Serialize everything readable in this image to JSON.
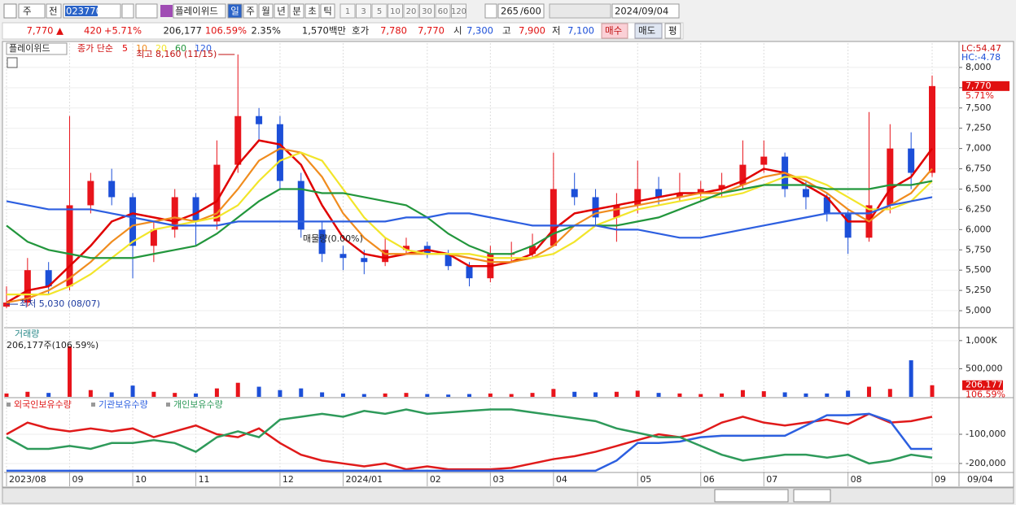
{
  "toolbar": {
    "market": "주",
    "mode": "전",
    "code": "023770",
    "name": "플레이위드",
    "periods": [
      "일",
      "주",
      "월",
      "년",
      "분",
      "초",
      "틱"
    ],
    "intervals": [
      1,
      3,
      5,
      10,
      20,
      30,
      60,
      120
    ],
    "count": 265,
    "max": "/600",
    "date": "2024/09/04"
  },
  "quote": {
    "price": "7,770 ▲",
    "change": "420",
    "change_pct": "+5.71%",
    "volume": "206,177",
    "volume_ratio": "106.59%",
    "turnover": "2.35%",
    "amount": "1,570백만",
    "bid_label": "호가",
    "ask": "7,780",
    "bid": "7,770",
    "open_label": "시",
    "open": "7,300",
    "high_label": "고",
    "high": "7,900",
    "low_label": "저",
    "low": "7,100",
    "buy": "매수",
    "sell": "매도",
    "avg": "평"
  },
  "chart_data": [
    {
      "type": "candlestick",
      "title": "플레이위드",
      "up_color": "#e8141b",
      "down_color": "#1c4fd8",
      "open": [
        5050,
        5100,
        5500,
        5300,
        6300,
        6600,
        6400,
        5800,
        6000,
        6400,
        6100,
        6800,
        7400,
        7300,
        6600,
        6000,
        5700,
        5650,
        5600,
        5750,
        5800,
        5700,
        5550,
        5400,
        5700,
        5700,
        5800,
        6500,
        6400,
        6150,
        6300,
        6500,
        6400,
        6450,
        6500,
        6550,
        6800,
        6900,
        6500,
        6400,
        6200,
        5900,
        6300,
        7000,
        6700
      ],
      "high": [
        5300,
        5650,
        5600,
        7400,
        6700,
        6750,
        6450,
        6100,
        6500,
        6450,
        7100,
        8160,
        7500,
        7400,
        6700,
        6100,
        5800,
        5750,
        5900,
        5900,
        5850,
        5750,
        5600,
        5800,
        5850,
        5950,
        6950,
        6700,
        6500,
        6450,
        6850,
        6650,
        6700,
        6600,
        6700,
        7100,
        7100,
        6950,
        6600,
        6450,
        6250,
        7450,
        7300,
        7200,
        7900
      ],
      "low": [
        5030,
        5050,
        5200,
        5250,
        6200,
        6300,
        5400,
        5600,
        5900,
        5800,
        6000,
        6700,
        7100,
        6500,
        5900,
        5600,
        5500,
        5450,
        5550,
        5700,
        5650,
        5500,
        5300,
        5350,
        5600,
        5650,
        5800,
        6300,
        6050,
        5850,
        6200,
        6300,
        6350,
        6350,
        6400,
        6500,
        6700,
        6400,
        6250,
        6100,
        5700,
        5850,
        6200,
        6500,
        6650
      ],
      "close": [
        5100,
        5500,
        5300,
        6300,
        6600,
        6400,
        5800,
        6000,
        6400,
        6100,
        6800,
        7400,
        7300,
        6600,
        6000,
        5700,
        5650,
        5600,
        5750,
        5800,
        5700,
        5550,
        5400,
        5700,
        5700,
        5800,
        6500,
        6400,
        6150,
        6300,
        6500,
        6400,
        6450,
        6500,
        6550,
        6800,
        6900,
        6500,
        6400,
        6200,
        5900,
        6300,
        7000,
        6700,
        7770
      ],
      "ylim": [
        4800,
        8300
      ],
      "yticks": [
        {
          "value": 5000,
          "label": "5,000"
        },
        {
          "value": 5250,
          "label": "5,250"
        },
        {
          "value": 5500,
          "label": "5,500"
        },
        {
          "value": 5750,
          "label": "5,750"
        },
        {
          "value": 6000,
          "label": "6,000"
        },
        {
          "value": 6250,
          "label": "6,250"
        },
        {
          "value": 6500,
          "label": "6,500"
        },
        {
          "value": 6750,
          "label": "6,750"
        },
        {
          "value": 7000,
          "label": "7,000"
        },
        {
          "value": 7250,
          "label": "7,250"
        },
        {
          "value": 7500,
          "label": "7,500"
        },
        {
          "value": 7750,
          "label": "7,750"
        },
        {
          "value": 8000,
          "label": "8,000"
        }
      ],
      "ma_label": "종가 단순",
      "ma": [
        {
          "name": "5",
          "color": "#e00000",
          "values": [
            5100,
            5250,
            5300,
            5550,
            5800,
            6100,
            6200,
            6150,
            6100,
            6200,
            6350,
            6800,
            7100,
            7050,
            6800,
            6300,
            5900,
            5700,
            5650,
            5700,
            5750,
            5700,
            5550,
            5550,
            5600,
            5700,
            6000,
            6200,
            6250,
            6300,
            6350,
            6400,
            6450,
            6450,
            6500,
            6600,
            6750,
            6700,
            6550,
            6400,
            6100,
            6100,
            6500,
            6650,
            7000
          ]
        },
        {
          "name": "10",
          "color": "#f08c1e",
          "values": [
            5100,
            5150,
            5250,
            5400,
            5600,
            5850,
            6050,
            6100,
            6150,
            6100,
            6200,
            6500,
            6850,
            7000,
            6950,
            6650,
            6200,
            5900,
            5700,
            5700,
            5700,
            5700,
            5650,
            5600,
            5600,
            5650,
            5800,
            6050,
            6200,
            6250,
            6300,
            6350,
            6400,
            6450,
            6450,
            6550,
            6650,
            6700,
            6600,
            6450,
            6250,
            6100,
            6300,
            6450,
            6750
          ]
        },
        {
          "name": "20",
          "color": "#f2e52a",
          "values": [
            5200,
            5200,
            5200,
            5300,
            5450,
            5650,
            5850,
            6000,
            6050,
            6100,
            6150,
            6300,
            6600,
            6850,
            6950,
            6850,
            6500,
            6150,
            5900,
            5750,
            5700,
            5700,
            5700,
            5650,
            5650,
            5650,
            5700,
            5850,
            6050,
            6150,
            6250,
            6300,
            6350,
            6400,
            6400,
            6450,
            6550,
            6650,
            6650,
            6550,
            6400,
            6250,
            6250,
            6350,
            6600
          ]
        },
        {
          "name": "60",
          "color": "#22963c",
          "values": [
            6050,
            5850,
            5750,
            5700,
            5650,
            5650,
            5650,
            5700,
            5750,
            5800,
            5950,
            6150,
            6350,
            6500,
            6500,
            6450,
            6450,
            6400,
            6350,
            6300,
            6150,
            5950,
            5800,
            5700,
            5700,
            5800,
            5950,
            6050,
            6050,
            6050,
            6100,
            6150,
            6250,
            6350,
            6450,
            6500,
            6550,
            6550,
            6550,
            6500,
            6500,
            6500,
            6550,
            6550,
            6600
          ]
        },
        {
          "name": "120",
          "color": "#2d5fe0",
          "values": [
            6350,
            6300,
            6250,
            6250,
            6250,
            6200,
            6150,
            6100,
            6050,
            6050,
            6050,
            6100,
            6100,
            6100,
            6100,
            6100,
            6100,
            6100,
            6100,
            6150,
            6150,
            6200,
            6200,
            6150,
            6100,
            6050,
            6050,
            6050,
            6050,
            6000,
            6000,
            5950,
            5900,
            5900,
            5950,
            6000,
            6050,
            6100,
            6150,
            6200,
            6200,
            6200,
            6300,
            6350,
            6400
          ]
        }
      ],
      "annotations": {
        "high": "최고 8,160 (11/15)",
        "low": "최저 5,030 (08/07)",
        "supply": "매물량(0.00%)"
      },
      "indicators": [
        "LC:54.47",
        "HC:-4.78"
      ],
      "last_label": "7,770",
      "last_change": "5.71%"
    },
    {
      "type": "bar",
      "title": "거래량",
      "subtitle": "206,177주(106.59%)",
      "values": [
        60000,
        90000,
        70000,
        900000,
        120000,
        80000,
        200000,
        90000,
        70000,
        60000,
        150000,
        250000,
        180000,
        120000,
        150000,
        80000,
        60000,
        50000,
        60000,
        70000,
        50000,
        40000,
        50000,
        60000,
        50000,
        70000,
        140000,
        90000,
        80000,
        90000,
        110000,
        70000,
        60000,
        50000,
        60000,
        120000,
        100000,
        80000,
        60000,
        60000,
        110000,
        180000,
        140000,
        650000,
        206177
      ],
      "ylim": [
        0,
        1200000
      ],
      "yticks": [
        {
          "value": 500000,
          "label": "500,000"
        },
        {
          "value": 1000000,
          "label": "1,000K"
        }
      ],
      "last_label": "206,177",
      "last_ratio": "106.59%"
    },
    {
      "type": "line",
      "categories": [
        "2023/08",
        null,
        null,
        "09",
        null,
        null,
        "10",
        null,
        null,
        "11",
        null,
        null,
        null,
        "12",
        null,
        null,
        "2024/01",
        null,
        null,
        null,
        "02",
        null,
        null,
        "03",
        null,
        null,
        "04",
        null,
        null,
        null,
        "05",
        null,
        null,
        "06",
        null,
        null,
        "07",
        null,
        null,
        null,
        "08",
        null,
        null,
        null,
        "09"
      ],
      "axis_end_label": "09/04",
      "ylim": [
        -228000,
        17000
      ],
      "yticks": [
        {
          "value": -100000,
          "label": "-100,000"
        },
        {
          "value": -200000,
          "label": "-200,000"
        }
      ],
      "series": [
        {
          "name": "외국인보유수량",
          "color": "#e01a1a",
          "values": [
            -100000,
            -60000,
            -80000,
            -90000,
            -80000,
            -90000,
            -80000,
            -110000,
            -90000,
            -70000,
            -100000,
            -110000,
            -80000,
            -130000,
            -170000,
            -190000,
            -200000,
            -210000,
            -200000,
            -220000,
            -210000,
            -220000,
            -220000,
            -220000,
            -215000,
            -200000,
            -185000,
            -175000,
            -160000,
            -140000,
            -120000,
            -100000,
            -110000,
            -95000,
            -60000,
            -40000,
            -60000,
            -70000,
            -60000,
            -50000,
            -65000,
            -30000,
            -60000,
            -55000,
            -40000
          ]
        },
        {
          "name": "기관보유수량",
          "color": "#2c5fe0",
          "values": [
            -225000,
            -225000,
            -225000,
            -225000,
            -225000,
            -225000,
            -225000,
            -225000,
            -225000,
            -225000,
            -225000,
            -225000,
            -225000,
            -225000,
            -225000,
            -225000,
            -225000,
            -225000,
            -225000,
            -225000,
            -225000,
            -225000,
            -225000,
            -225000,
            -225000,
            -225000,
            -225000,
            -225000,
            -225000,
            -190000,
            -130000,
            -130000,
            -125000,
            -110000,
            -105000,
            -105000,
            -105000,
            -105000,
            -70000,
            -35000,
            -35000,
            -30000,
            -55000,
            -150000,
            -150000
          ]
        },
        {
          "name": "개인보유수량",
          "color": "#2e9a5a",
          "values": [
            -110000,
            -150000,
            -150000,
            -140000,
            -150000,
            -130000,
            -130000,
            -120000,
            -130000,
            -160000,
            -110000,
            -90000,
            -110000,
            -50000,
            -40000,
            -30000,
            -40000,
            -20000,
            -30000,
            -15000,
            -30000,
            -25000,
            -20000,
            -15000,
            -15000,
            -25000,
            -35000,
            -45000,
            -55000,
            -80000,
            -95000,
            -110000,
            -110000,
            -140000,
            -170000,
            -190000,
            -180000,
            -170000,
            -170000,
            -180000,
            -170000,
            -200000,
            -190000,
            -170000,
            -180000
          ]
        }
      ]
    }
  ]
}
